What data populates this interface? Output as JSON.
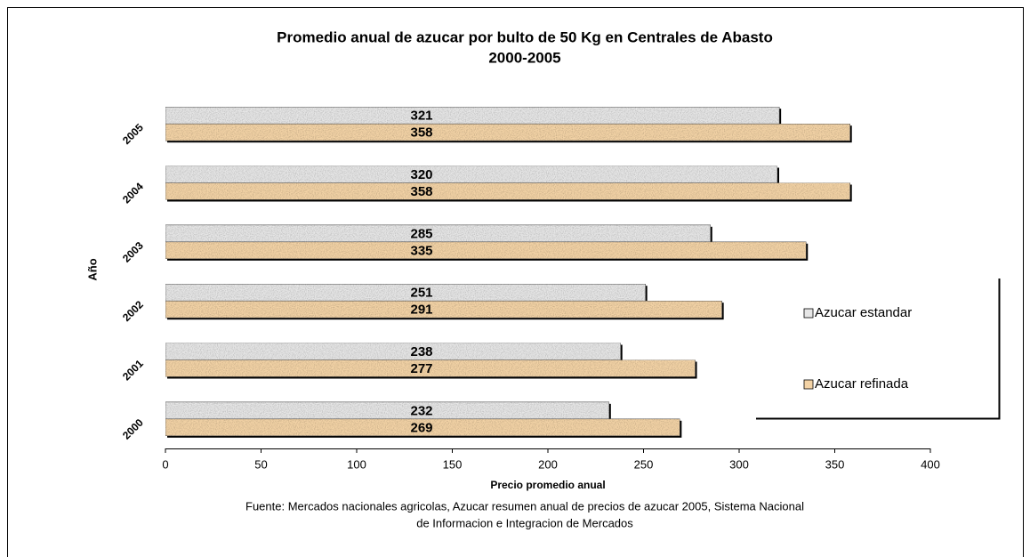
{
  "chart_data": {
    "type": "barh",
    "title": "Promedio anual de azucar por bulto de 50 Kg en Centrales de Abasto",
    "subtitle": "2000-2005",
    "x_label": "Precio promedio anual",
    "y_label": "Año",
    "source": [
      "Fuente: Mercados nacionales agricolas, Azucar resumen anual de precios de azucar 2005, Sistema Nacional",
      "de Informacion e Integracion de Mercados"
    ],
    "categories": [
      "2000",
      "2001",
      "2002",
      "2003",
      "2004",
      "2005"
    ],
    "series": [
      {
        "name": "Azucar estandar",
        "color": "#e6e6e6",
        "values": [
          232,
          238,
          251,
          285,
          320,
          321
        ]
      },
      {
        "name": "Azucar refinada",
        "color": "#f3d3a6",
        "values": [
          269,
          277,
          291,
          335,
          358,
          358
        ]
      }
    ],
    "xlim": [
      0,
      400
    ],
    "xticks": [
      0,
      50,
      100,
      150,
      200,
      250,
      300,
      350,
      400
    ],
    "grid": false,
    "legend": "right"
  }
}
